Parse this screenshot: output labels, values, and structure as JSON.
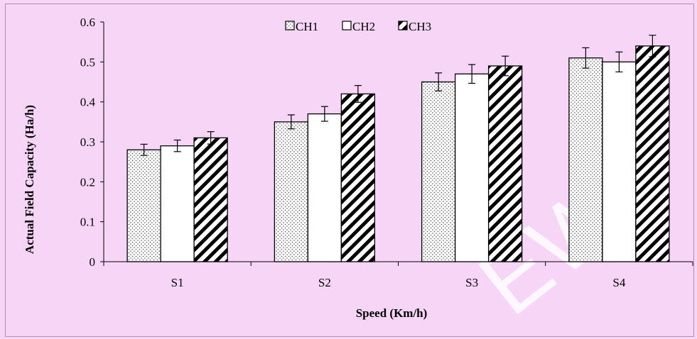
{
  "chart_data": {
    "type": "bar",
    "title": "",
    "xlabel": "Speed (Km/h)",
    "ylabel": "Actual Field Capacity (Ha/h)",
    "categories": [
      "S1",
      "S2",
      "S3",
      "S4"
    ],
    "ylim": [
      0,
      0.6
    ],
    "yticks": [
      "0",
      "0.1",
      "0.2",
      "0.3",
      "0.4",
      "0.5",
      "0.6"
    ],
    "grid": false,
    "legend_position": "top-center",
    "error_bars": true,
    "series": [
      {
        "name": "CH1",
        "values": [
          0.28,
          0.35,
          0.45,
          0.51
        ],
        "errors": [
          0.014,
          0.0175,
          0.0225,
          0.0255
        ],
        "pattern": "dotted"
      },
      {
        "name": "CH2",
        "values": [
          0.29,
          0.37,
          0.47,
          0.5
        ],
        "errors": [
          0.0145,
          0.0185,
          0.0235,
          0.025
        ],
        "pattern": "plain"
      },
      {
        "name": "CH3",
        "values": [
          0.31,
          0.42,
          0.49,
          0.54
        ],
        "errors": [
          0.0155,
          0.021,
          0.0245,
          0.027
        ],
        "pattern": "diagonal"
      }
    ]
  },
  "watermark": "EW",
  "colors": {
    "background": "#f6d5f6",
    "bar_outline": "#000000"
  }
}
